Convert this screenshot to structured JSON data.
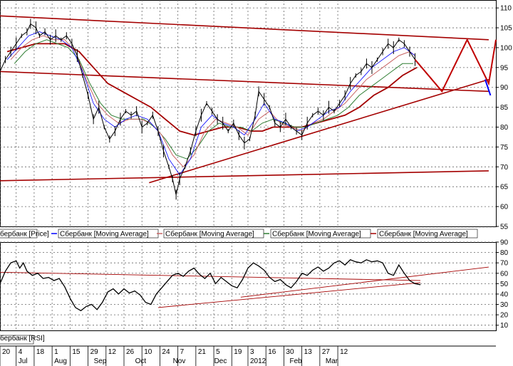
{
  "chart_data": [
    {
      "type": "line",
      "ylim": [
        55,
        112
      ],
      "y_ticks": [
        55,
        60,
        65,
        70,
        75,
        80,
        85,
        90,
        95,
        100,
        105,
        110
      ],
      "grid": true,
      "legend": [
        {
          "label": "бербанк [Price]",
          "color": "#1f3fbf"
        },
        {
          "label": "Сбербанк [Moving Average]",
          "color": "#0000ff"
        },
        {
          "label": "Сбербанк [Moving Average]",
          "color": "#c86464"
        },
        {
          "label": "Сбербанк [Moving Average]",
          "color": "#2e7d32"
        },
        {
          "label": "Сбербанк [Moving Average]",
          "color": "#a40000"
        }
      ],
      "price_path": [
        [
          0,
          94
        ],
        [
          3,
          97
        ],
        [
          6,
          99
        ],
        [
          9,
          101
        ],
        [
          12,
          103
        ],
        [
          15,
          104
        ],
        [
          17,
          106
        ],
        [
          20,
          105
        ],
        [
          22,
          103
        ],
        [
          25,
          104
        ],
        [
          28,
          102
        ],
        [
          31,
          103
        ],
        [
          34,
          102
        ],
        [
          37,
          103
        ],
        [
          40,
          101
        ],
        [
          43,
          98
        ],
        [
          46,
          93
        ],
        [
          49,
          88
        ],
        [
          52,
          82
        ],
        [
          55,
          85
        ],
        [
          58,
          80
        ],
        [
          61,
          77
        ],
        [
          64,
          79
        ],
        [
          67,
          82
        ],
        [
          70,
          84
        ],
        [
          73,
          83
        ],
        [
          76,
          84
        ],
        [
          79,
          80
        ],
        [
          82,
          81
        ],
        [
          85,
          83
        ],
        [
          88,
          79
        ],
        [
          91,
          74
        ],
        [
          94,
          70
        ],
        [
          96,
          67
        ],
        [
          98,
          63
        ],
        [
          100,
          67
        ],
        [
          103,
          70
        ],
        [
          106,
          74
        ],
        [
          109,
          79
        ],
        [
          112,
          83
        ],
        [
          115,
          86
        ],
        [
          118,
          84
        ],
        [
          121,
          82
        ],
        [
          124,
          81
        ],
        [
          127,
          79
        ],
        [
          130,
          81
        ],
        [
          133,
          78
        ],
        [
          136,
          76
        ],
        [
          139,
          77
        ],
        [
          142,
          83
        ],
        [
          144,
          89
        ],
        [
          147,
          87
        ],
        [
          150,
          85
        ],
        [
          153,
          81
        ],
        [
          156,
          80
        ],
        [
          159,
          82
        ],
        [
          162,
          80
        ],
        [
          165,
          79
        ],
        [
          168,
          78
        ],
        [
          171,
          81
        ],
        [
          174,
          83
        ],
        [
          177,
          84
        ],
        [
          180,
          83
        ],
        [
          183,
          85
        ],
        [
          186,
          84
        ],
        [
          189,
          86
        ],
        [
          192,
          88
        ],
        [
          195,
          91
        ],
        [
          198,
          93
        ],
        [
          201,
          94
        ],
        [
          204,
          96
        ],
        [
          207,
          95
        ],
        [
          210,
          97
        ],
        [
          213,
          99
        ],
        [
          216,
          101
        ],
        [
          219,
          100
        ],
        [
          222,
          102
        ],
        [
          225,
          101
        ],
        [
          228,
          99
        ],
        [
          231,
          97
        ]
      ],
      "ma_fast": [
        [
          4,
          97
        ],
        [
          10,
          100
        ],
        [
          16,
          103
        ],
        [
          22,
          104
        ],
        [
          28,
          103
        ],
        [
          34,
          102
        ],
        [
          40,
          100
        ],
        [
          46,
          94
        ],
        [
          52,
          86
        ],
        [
          58,
          82
        ],
        [
          64,
          80
        ],
        [
          70,
          82
        ],
        [
          76,
          83
        ],
        [
          82,
          82
        ],
        [
          88,
          79
        ],
        [
          94,
          72
        ],
        [
          100,
          68
        ],
        [
          106,
          72
        ],
        [
          112,
          80
        ],
        [
          118,
          83
        ],
        [
          124,
          81
        ],
        [
          130,
          80
        ],
        [
          136,
          78
        ],
        [
          142,
          82
        ],
        [
          147,
          86
        ],
        [
          153,
          82
        ],
        [
          159,
          81
        ],
        [
          165,
          79
        ],
        [
          171,
          80
        ],
        [
          177,
          82
        ],
        [
          183,
          84
        ],
        [
          189,
          85
        ],
        [
          195,
          89
        ],
        [
          201,
          92
        ],
        [
          207,
          95
        ],
        [
          213,
          97
        ],
        [
          219,
          99
        ],
        [
          225,
          100
        ],
        [
          231,
          98
        ]
      ],
      "ma_mid": [
        [
          6,
          97
        ],
        [
          12,
          100
        ],
        [
          18,
          102
        ],
        [
          24,
          103
        ],
        [
          30,
          102
        ],
        [
          36,
          102
        ],
        [
          42,
          99
        ],
        [
          48,
          92
        ],
        [
          54,
          86
        ],
        [
          60,
          83
        ],
        [
          66,
          81
        ],
        [
          72,
          82
        ],
        [
          78,
          82
        ],
        [
          84,
          81
        ],
        [
          90,
          78
        ],
        [
          96,
          73
        ],
        [
          102,
          70
        ],
        [
          108,
          73
        ],
        [
          114,
          79
        ],
        [
          120,
          82
        ],
        [
          126,
          81
        ],
        [
          132,
          80
        ],
        [
          138,
          78
        ],
        [
          144,
          82
        ],
        [
          150,
          84
        ],
        [
          156,
          81
        ],
        [
          162,
          80
        ],
        [
          168,
          79
        ],
        [
          174,
          81
        ],
        [
          180,
          82
        ],
        [
          186,
          84
        ],
        [
          192,
          86
        ],
        [
          198,
          89
        ],
        [
          204,
          92
        ],
        [
          210,
          94
        ],
        [
          216,
          96
        ],
        [
          222,
          98
        ],
        [
          228,
          99
        ],
        [
          231,
          98
        ]
      ],
      "ma_slow": [
        [
          8,
          96
        ],
        [
          14,
          99
        ],
        [
          20,
          101
        ],
        [
          26,
          102
        ],
        [
          32,
          101
        ],
        [
          38,
          100
        ],
        [
          44,
          97
        ],
        [
          50,
          91
        ],
        [
          56,
          86
        ],
        [
          62,
          83
        ],
        [
          68,
          82
        ],
        [
          74,
          82
        ],
        [
          80,
          82
        ],
        [
          86,
          80
        ],
        [
          92,
          77
        ],
        [
          98,
          73
        ],
        [
          104,
          72
        ],
        [
          110,
          75
        ],
        [
          116,
          79
        ],
        [
          122,
          81
        ],
        [
          128,
          80
        ],
        [
          134,
          80
        ],
        [
          140,
          79
        ],
        [
          146,
          81
        ],
        [
          152,
          82
        ],
        [
          158,
          81
        ],
        [
          164,
          80
        ],
        [
          170,
          80
        ],
        [
          176,
          81
        ],
        [
          182,
          82
        ],
        [
          188,
          83
        ],
        [
          194,
          85
        ],
        [
          200,
          88
        ],
        [
          206,
          90
        ],
        [
          212,
          92
        ],
        [
          218,
          94
        ],
        [
          224,
          96
        ],
        [
          230,
          96
        ]
      ],
      "ma_long": [
        [
          4,
          99
        ],
        [
          12,
          100
        ],
        [
          20,
          101
        ],
        [
          28,
          101
        ],
        [
          36,
          101
        ],
        [
          44,
          99
        ],
        [
          52,
          95
        ],
        [
          60,
          91
        ],
        [
          68,
          89
        ],
        [
          76,
          87
        ],
        [
          84,
          85
        ],
        [
          92,
          82
        ],
        [
          100,
          79
        ],
        [
          108,
          78
        ],
        [
          116,
          79
        ],
        [
          124,
          80
        ],
        [
          132,
          80
        ],
        [
          140,
          79
        ],
        [
          146,
          79
        ],
        [
          152,
          80
        ],
        [
          160,
          80
        ],
        [
          168,
          80
        ],
        [
          176,
          81
        ],
        [
          184,
          82
        ],
        [
          192,
          83
        ],
        [
          200,
          85
        ],
        [
          208,
          88
        ],
        [
          216,
          90
        ],
        [
          224,
          93
        ],
        [
          232,
          95
        ]
      ],
      "trend_lines": [
        {
          "from": [
            0,
            108
          ],
          "to": [
            272,
            102
          ],
          "color": "#a40000"
        },
        {
          "from": [
            0,
            94
          ],
          "to": [
            272,
            89
          ],
          "color": "#a40000"
        },
        {
          "from": [
            0,
            66.5
          ],
          "to": [
            272,
            69
          ],
          "color": "#a40000"
        },
        {
          "from": [
            83,
            66
          ],
          "to": [
            272,
            92
          ],
          "color": "#a40000"
        }
      ],
      "projection": [
        [
          231,
          97
        ],
        [
          246,
          89
        ],
        [
          260,
          102
        ],
        [
          272,
          91
        ],
        [
          276,
          102
        ]
      ],
      "projection_tail": [
        [
          270,
          92
        ],
        [
          273,
          88
        ]
      ]
    },
    {
      "type": "line",
      "ylim": [
        5,
        90
      ],
      "y_ticks": [
        10,
        20,
        30,
        40,
        50,
        60,
        70,
        80,
        90
      ],
      "grid": true,
      "legend": [
        {
          "label": "бербанк [RSI]",
          "color": "#1f3fbf"
        }
      ],
      "rsi": [
        [
          0,
          50
        ],
        [
          3,
          62
        ],
        [
          6,
          70
        ],
        [
          9,
          72
        ],
        [
          11,
          65
        ],
        [
          13,
          70
        ],
        [
          15,
          62
        ],
        [
          18,
          58
        ],
        [
          21,
          60
        ],
        [
          24,
          55
        ],
        [
          27,
          56
        ],
        [
          30,
          53
        ],
        [
          33,
          55
        ],
        [
          36,
          47
        ],
        [
          39,
          36
        ],
        [
          42,
          27
        ],
        [
          45,
          24
        ],
        [
          48,
          28
        ],
        [
          51,
          30
        ],
        [
          54,
          25
        ],
        [
          57,
          32
        ],
        [
          60,
          42
        ],
        [
          63,
          45
        ],
        [
          66,
          40
        ],
        [
          69,
          45
        ],
        [
          72,
          41
        ],
        [
          75,
          43
        ],
        [
          78,
          39
        ],
        [
          81,
          32
        ],
        [
          84,
          30
        ],
        [
          87,
          40
        ],
        [
          90,
          46
        ],
        [
          93,
          52
        ],
        [
          96,
          58
        ],
        [
          99,
          60
        ],
        [
          102,
          57
        ],
        [
          105,
          62
        ],
        [
          108,
          65
        ],
        [
          111,
          59
        ],
        [
          114,
          55
        ],
        [
          117,
          60
        ],
        [
          120,
          50
        ],
        [
          123,
          56
        ],
        [
          126,
          52
        ],
        [
          129,
          48
        ],
        [
          132,
          46
        ],
        [
          135,
          54
        ],
        [
          138,
          65
        ],
        [
          141,
          70
        ],
        [
          144,
          67
        ],
        [
          147,
          63
        ],
        [
          150,
          56
        ],
        [
          153,
          52
        ],
        [
          156,
          54
        ],
        [
          159,
          49
        ],
        [
          162,
          46
        ],
        [
          165,
          52
        ],
        [
          168,
          60
        ],
        [
          171,
          58
        ],
        [
          174,
          63
        ],
        [
          177,
          66
        ],
        [
          180,
          62
        ],
        [
          183,
          65
        ],
        [
          186,
          70
        ],
        [
          189,
          72
        ],
        [
          192,
          68
        ],
        [
          195,
          73
        ],
        [
          198,
          71
        ],
        [
          201,
          70
        ],
        [
          204,
          73
        ],
        [
          207,
          71
        ],
        [
          210,
          72
        ],
        [
          213,
          70
        ],
        [
          216,
          60
        ],
        [
          219,
          58
        ],
        [
          222,
          68
        ],
        [
          225,
          60
        ],
        [
          228,
          53
        ],
        [
          231,
          50
        ],
        [
          234,
          49
        ]
      ],
      "trend_lines": [
        {
          "from": [
            0,
            61
          ],
          "to": [
            234,
            53
          ],
          "color": "#a40000"
        },
        {
          "from": [
            88,
            27
          ],
          "to": [
            234,
            51
          ],
          "color": "#a40000"
        },
        {
          "from": [
            134,
            37
          ],
          "to": [
            272,
            66
          ],
          "color": "#a40000"
        }
      ],
      "x_tick_labels": [
        {
          "t": 0,
          "label": "20"
        },
        {
          "t": 9,
          "label": "4"
        },
        {
          "t": 19,
          "label": "18"
        },
        {
          "t": 29,
          "label": "1"
        },
        {
          "t": 39,
          "label": "15"
        },
        {
          "t": 49,
          "label": "29"
        },
        {
          "t": 59,
          "label": "12"
        },
        {
          "t": 69,
          "label": "26"
        },
        {
          "t": 79,
          "label": "10"
        },
        {
          "t": 89,
          "label": "24"
        },
        {
          "t": 99,
          "label": "7"
        },
        {
          "t": 109,
          "label": "21"
        },
        {
          "t": 119,
          "label": "5"
        },
        {
          "t": 129,
          "label": "19"
        },
        {
          "t": 138,
          "label": "3"
        },
        {
          "t": 148,
          "label": "16"
        },
        {
          "t": 158,
          "label": "30"
        },
        {
          "t": 168,
          "label": "13"
        },
        {
          "t": 178,
          "label": "27"
        },
        {
          "t": 188,
          "label": "12"
        }
      ],
      "x_month_labels": [
        {
          "t": 9,
          "label": "Jul"
        },
        {
          "t": 29,
          "label": "Aug"
        },
        {
          "t": 51,
          "label": "Sep"
        },
        {
          "t": 74,
          "label": "Oct"
        },
        {
          "t": 95,
          "label": "Nov"
        },
        {
          "t": 118,
          "label": "Dec"
        },
        {
          "t": 138,
          "label": "2012"
        },
        {
          "t": 160,
          "label": "Feb"
        },
        {
          "t": 180,
          "label": "Mar"
        }
      ]
    }
  ]
}
